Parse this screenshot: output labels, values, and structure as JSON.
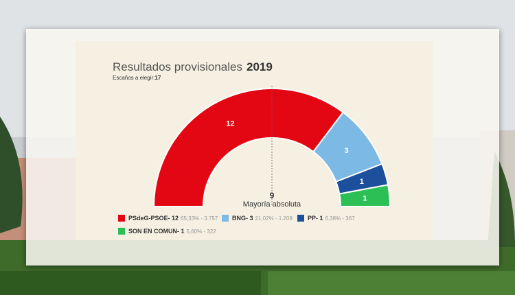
{
  "header": {
    "title": "Resultados provisionales",
    "year": "2019",
    "seats_label": "Escaños a elegir:",
    "seats_value": "17"
  },
  "majority": {
    "number": "9",
    "label": "Mayoría absoluta"
  },
  "legend": [
    {
      "name": "PSdeG-PSOE- 12",
      "detail": "65,33% - 3.757",
      "color": "#e30613"
    },
    {
      "name": "BNG- 3",
      "detail": "21,02% - 1.209",
      "color": "#7db9e5"
    },
    {
      "name": "PP- 1",
      "detail": "6,38% - 367",
      "color": "#1c4f9c"
    },
    {
      "name": "SON EN COMUN- 1",
      "detail": "5,60% - 322",
      "color": "#2bbf56"
    }
  ],
  "chart_data": {
    "type": "pie",
    "subtype": "parliament-half-donut",
    "title": "Resultados provisionales 2019",
    "total_seats": 17,
    "majority": 9,
    "series": [
      {
        "name": "PSdeG-PSOE",
        "seats": 12,
        "percent": 65.33,
        "votes": 3757,
        "color": "#e30613"
      },
      {
        "name": "BNG",
        "seats": 3,
        "percent": 21.02,
        "votes": 1209,
        "color": "#7db9e5"
      },
      {
        "name": "PP",
        "seats": 1,
        "percent": 6.38,
        "votes": 367,
        "color": "#1c4f9c"
      },
      {
        "name": "SON EN COMUN",
        "seats": 1,
        "percent": 5.6,
        "votes": 322,
        "color": "#2bbf56"
      }
    ]
  }
}
